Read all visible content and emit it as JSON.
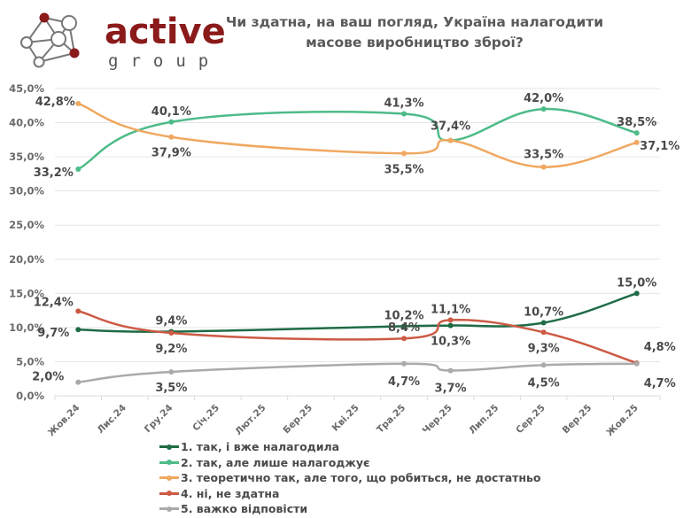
{
  "header": {
    "logo_word": "active",
    "logo_sub": "group",
    "title_line1": "Чи здатна, на ваш погляд, Україна налагодити",
    "title_line2": "масове виробництво зброї?"
  },
  "colors": {
    "brand": "#8b1a1a",
    "grid": "#e6e6e6"
  },
  "chart_data": {
    "type": "line",
    "title": "Чи здатна, на ваш погляд, Україна налагодити масове виробництво зброї?",
    "xlabel": "",
    "ylabel": "",
    "ylim": [
      0,
      45
    ],
    "yticks": [
      "0,0%",
      "5,0%",
      "10,0%",
      "15,0%",
      "20,0%",
      "25,0%",
      "30,0%",
      "35,0%",
      "40,0%",
      "45,0%"
    ],
    "grid": true,
    "legend_position": "bottom",
    "categories": [
      "Жов.24",
      "Лис.24",
      "Гру.24",
      "Січ.25",
      "Лют.25",
      "Бер.25",
      "Кві.25",
      "Тра.25",
      "Чер.25",
      "Лип.25",
      "Сер.25",
      "Вер.25",
      "Жов.25"
    ],
    "series": [
      {
        "name": "1. так, і вже налагодила",
        "color": "#1e6b45",
        "points": [
          {
            "x": "Жов.24",
            "y": 9.7,
            "label": "9,7%"
          },
          {
            "x": "Гру.24",
            "y": 9.4,
            "label": "9,4%"
          },
          {
            "x": "Тра.25",
            "y": 10.2,
            "label": "10,2%"
          },
          {
            "x": "Чер.25",
            "y": 10.3,
            "label": "10,3%"
          },
          {
            "x": "Сер.25",
            "y": 10.7,
            "label": "10,7%"
          },
          {
            "x": "Жов.25",
            "y": 15.0,
            "label": "15,0%"
          }
        ]
      },
      {
        "name": "2. так, але лише налагоджує",
        "color": "#4dbb88",
        "points": [
          {
            "x": "Жов.24",
            "y": 33.2,
            "label": "33,2%"
          },
          {
            "x": "Гру.24",
            "y": 40.1,
            "label": "40,1%"
          },
          {
            "x": "Тра.25",
            "y": 41.3,
            "label": "41,3%"
          },
          {
            "x": "Чер.25",
            "y": 37.4,
            "label": ""
          },
          {
            "x": "Сер.25",
            "y": 42.0,
            "label": "42,0%"
          },
          {
            "x": "Жов.25",
            "y": 38.5,
            "label": "38,5%"
          }
        ]
      },
      {
        "name": "3. теоретично так, але того, що робиться, не достатньо",
        "color": "#f0a860",
        "points": [
          {
            "x": "Жов.24",
            "y": 42.8,
            "label": "42,8%"
          },
          {
            "x": "Гру.24",
            "y": 37.9,
            "label": "37,9%"
          },
          {
            "x": "Тра.25",
            "y": 35.5,
            "label": "35,5%"
          },
          {
            "x": "Чер.25",
            "y": 37.4,
            "label": "37,4%"
          },
          {
            "x": "Сер.25",
            "y": 33.5,
            "label": "33,5%"
          },
          {
            "x": "Жов.25",
            "y": 37.1,
            "label": "37,1%"
          }
        ]
      },
      {
        "name": "4. ні, не здатна",
        "color": "#cc5a44",
        "points": [
          {
            "x": "Жов.24",
            "y": 12.4,
            "label": "12,4%"
          },
          {
            "x": "Гру.24",
            "y": 9.2,
            "label": "9,2%"
          },
          {
            "x": "Тра.25",
            "y": 8.4,
            "label": "8,4%"
          },
          {
            "x": "Чер.25",
            "y": 11.1,
            "label": "11,1%"
          },
          {
            "x": "Сер.25",
            "y": 9.3,
            "label": "9,3%"
          },
          {
            "x": "Жов.25",
            "y": 4.8,
            "label": "4,8%"
          }
        ]
      },
      {
        "name": "5. важко відповісти",
        "color": "#aaaaaa",
        "points": [
          {
            "x": "Жов.24",
            "y": 2.0,
            "label": "2,0%"
          },
          {
            "x": "Гру.24",
            "y": 3.5,
            "label": "3,5%"
          },
          {
            "x": "Тра.25",
            "y": 4.7,
            "label": "4,7%"
          },
          {
            "x": "Чер.25",
            "y": 3.7,
            "label": "3,7%"
          },
          {
            "x": "Сер.25",
            "y": 4.5,
            "label": "4,5%"
          },
          {
            "x": "Жов.25",
            "y": 4.7,
            "label": "4,7%"
          }
        ]
      }
    ]
  }
}
